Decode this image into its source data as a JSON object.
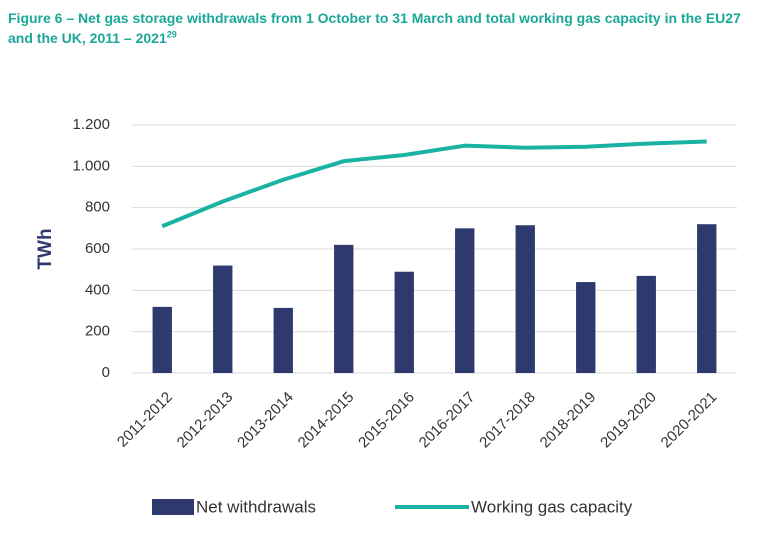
{
  "chart_data": {
    "type": "bar",
    "title": "Figure 6 – Net gas storage withdrawals from 1 October to 31 March and total working gas capacity in the EU27 and the UK, 2011 – 2021",
    "title_superscript": "29",
    "y_axis_label": "TWh",
    "categories": [
      "2011-2012",
      "2012-2013",
      "2013-2014",
      "2014-2015",
      "2015-2016",
      "2016-2017",
      "2017-2018",
      "2018-2019",
      "2019-2020",
      "2020-2021"
    ],
    "series": [
      {
        "name": "Net withdrawals",
        "type": "bar",
        "color": "#2e3a6e",
        "values": [
          320,
          520,
          315,
          620,
          490,
          700,
          715,
          440,
          470,
          720
        ]
      },
      {
        "name": "Working gas capacity",
        "type": "line",
        "color": "#1ab3a3",
        "values": [
          710,
          830,
          935,
          1025,
          1055,
          1100,
          1090,
          1095,
          1110,
          1120
        ]
      }
    ],
    "ylim": [
      0,
      1200
    ],
    "yticks": [
      0,
      200,
      400,
      600,
      800,
      {
        "value": 1000,
        "label": "1.000"
      },
      {
        "value": 1200,
        "label": "1.200"
      }
    ],
    "grid": true,
    "legend": "bottom"
  }
}
